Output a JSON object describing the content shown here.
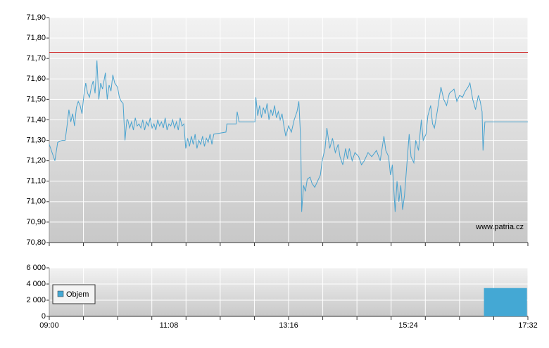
{
  "chart_data": [
    {
      "type": "line",
      "color": "#4aa3cf",
      "xlim": [
        "09:00",
        "17:32"
      ],
      "x_grid_divisions": 14,
      "ylim": [
        70.8,
        71.9
      ],
      "yticks": [
        {
          "value": 70.8,
          "label": "70,80"
        },
        {
          "value": 70.9,
          "label": "70,90"
        },
        {
          "value": 71.0,
          "label": "71,00"
        },
        {
          "value": 71.1,
          "label": "71,10"
        },
        {
          "value": 71.2,
          "label": "71,20"
        },
        {
          "value": 71.3,
          "label": "71,30"
        },
        {
          "value": 71.4,
          "label": "71,40"
        },
        {
          "value": 71.5,
          "label": "71,50"
        },
        {
          "value": 71.6,
          "label": "71,60"
        },
        {
          "value": 71.7,
          "label": "71,70"
        },
        {
          "value": 71.8,
          "label": "71,80"
        },
        {
          "value": 71.9,
          "label": "71,90"
        }
      ],
      "grid": true,
      "reference_line": 71.73,
      "reference_color": "#d03030",
      "watermark": "www.patria.cz",
      "x": [
        "09:00",
        "09:03",
        "09:06",
        "09:09",
        "09:14",
        "09:17",
        "09:19",
        "09:21",
        "09:23",
        "09:25",
        "09:27",
        "09:29",
        "09:31",
        "09:33",
        "09:35",
        "09:37",
        "09:39",
        "09:41",
        "09:43",
        "09:45",
        "09:47",
        "09:49",
        "09:51",
        "09:53",
        "09:55",
        "09:57",
        "10:00",
        "10:02",
        "10:04",
        "10:06",
        "10:08",
        "10:10",
        "10:13",
        "10:15",
        "10:17",
        "10:19",
        "10:21",
        "10:23",
        "10:24",
        "10:26",
        "10:28",
        "10:30",
        "10:32",
        "10:34",
        "10:36",
        "10:38",
        "10:40",
        "10:42",
        "10:44",
        "10:46",
        "10:48",
        "10:50",
        "10:52",
        "10:54",
        "10:56",
        "10:58",
        "11:00",
        "11:02",
        "11:04",
        "11:06",
        "11:08",
        "11:10",
        "11:12",
        "11:14",
        "11:16",
        "11:18",
        "11:20",
        "11:22",
        "11:24",
        "11:26",
        "11:28",
        "11:30",
        "11:32",
        "11:34",
        "11:36",
        "11:38",
        "11:40",
        "11:42",
        "11:44",
        "11:46",
        "11:48",
        "11:50",
        "11:52",
        "11:54",
        "11:56",
        "12:09",
        "12:10",
        "12:20",
        "12:21",
        "12:23",
        "12:40",
        "12:41",
        "12:43",
        "12:45",
        "12:47",
        "12:49",
        "12:51",
        "12:53",
        "12:55",
        "12:57",
        "12:59",
        "13:01",
        "13:03",
        "13:05",
        "13:07",
        "13:09",
        "13:11",
        "13:13",
        "13:16",
        "13:19",
        "13:22",
        "13:25",
        "13:27",
        "13:29",
        "13:30",
        "13:32",
        "13:34",
        "13:36",
        "13:39",
        "13:41",
        "13:44",
        "13:47",
        "13:50",
        "13:52",
        "13:55",
        "13:57",
        "14:00",
        "14:03",
        "14:06",
        "14:09",
        "14:11",
        "14:14",
        "14:17",
        "14:19",
        "14:21",
        "14:24",
        "14:27",
        "14:31",
        "14:34",
        "14:37",
        "14:41",
        "14:45",
        "14:50",
        "14:54",
        "14:58",
        "15:00",
        "15:03",
        "15:05",
        "15:07",
        "15:10",
        "15:12",
        "15:14",
        "15:16",
        "15:18",
        "15:20",
        "15:22",
        "15:25",
        "15:27",
        "15:30",
        "15:32",
        "15:35",
        "15:38",
        "15:40",
        "15:43",
        "15:45",
        "15:48",
        "15:50",
        "15:52",
        "15:55",
        "15:59",
        "16:02",
        "16:05",
        "16:08",
        "16:13",
        "16:16",
        "16:19",
        "16:22",
        "16:25",
        "16:28",
        "16:30",
        "16:33",
        "16:36",
        "16:39",
        "16:41",
        "16:43",
        "16:44",
        "16:46",
        "17:32"
      ],
      "values": [
        71.28,
        71.24,
        71.2,
        71.29,
        71.3,
        71.3,
        71.37,
        71.45,
        71.39,
        71.43,
        71.37,
        71.46,
        71.49,
        71.47,
        71.43,
        71.52,
        71.58,
        71.53,
        71.51,
        71.56,
        71.59,
        71.53,
        71.69,
        71.5,
        71.58,
        71.55,
        71.63,
        71.5,
        71.57,
        71.54,
        71.62,
        71.58,
        71.56,
        71.51,
        71.49,
        71.48,
        71.3,
        71.4,
        71.4,
        71.36,
        71.39,
        71.35,
        71.41,
        71.37,
        71.38,
        71.36,
        71.4,
        71.35,
        71.39,
        71.37,
        71.41,
        71.36,
        71.38,
        71.35,
        71.4,
        71.37,
        71.39,
        71.36,
        71.41,
        71.35,
        71.38,
        71.37,
        71.4,
        71.36,
        71.39,
        71.35,
        71.41,
        71.37,
        71.38,
        71.26,
        71.31,
        71.27,
        71.32,
        71.28,
        71.33,
        71.26,
        71.3,
        71.28,
        71.32,
        71.27,
        71.31,
        71.29,
        71.33,
        71.28,
        71.33,
        71.34,
        71.38,
        71.38,
        71.44,
        71.39,
        71.39,
        71.51,
        71.42,
        71.47,
        71.41,
        71.46,
        71.43,
        71.48,
        71.4,
        71.45,
        71.42,
        71.47,
        71.41,
        71.44,
        71.4,
        71.43,
        71.37,
        71.32,
        71.37,
        71.34,
        71.4,
        71.44,
        71.49,
        71.3,
        70.95,
        71.08,
        71.05,
        71.11,
        71.12,
        71.09,
        71.07,
        71.1,
        71.13,
        71.2,
        71.26,
        71.36,
        71.26,
        71.31,
        71.24,
        71.28,
        71.22,
        71.18,
        71.26,
        71.21,
        71.26,
        71.2,
        71.24,
        71.22,
        71.18,
        71.2,
        71.24,
        71.22,
        71.25,
        71.2,
        71.32,
        71.25,
        71.22,
        71.13,
        71.18,
        70.95,
        71.1,
        71.0,
        71.08,
        70.96,
        71.03,
        71.15,
        71.33,
        71.22,
        71.19,
        71.3,
        71.25,
        71.4,
        71.3,
        71.33,
        71.42,
        71.47,
        71.38,
        71.36,
        71.44,
        71.56,
        71.5,
        71.47,
        71.53,
        71.55,
        71.49,
        71.52,
        71.51,
        71.54,
        71.56,
        71.58,
        71.5,
        71.45,
        71.52,
        71.49,
        71.44,
        71.25,
        71.39,
        71.39
      ]
    },
    {
      "type": "histogram",
      "xlim": [
        "09:00",
        "17:32"
      ],
      "x_grid_divisions": 14,
      "xticks": [
        "09:00",
        "11:08",
        "13:16",
        "15:24",
        "17:32"
      ],
      "ylim": [
        0,
        6000
      ],
      "yticks": [
        0,
        {
          "value": 2000,
          "label": "2 000"
        },
        {
          "value": 4000,
          "label": "4 000"
        },
        {
          "value": 6000,
          "label": "6 000"
        }
      ],
      "grid": true,
      "bins": [
        "16:45",
        "17:31"
      ],
      "series": [
        {
          "name": "Objem",
          "color": "#44a8d4",
          "values": [
            3500
          ]
        }
      ]
    }
  ]
}
